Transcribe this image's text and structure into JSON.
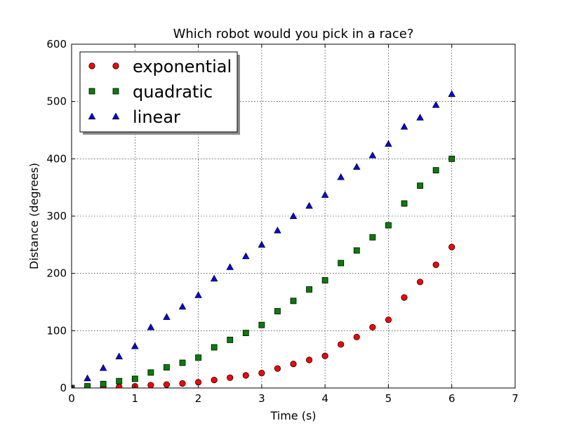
{
  "chart_data": {
    "type": "scatter",
    "title": "Which robot would you pick in a race?",
    "xlabel": "Time (s)",
    "ylabel": "Distance (degrees)",
    "xlim": [
      0,
      7
    ],
    "ylim": [
      0,
      600
    ],
    "xticks": [
      "0",
      "1",
      "2",
      "3",
      "4",
      "5",
      "6",
      "7"
    ],
    "yticks": [
      "0",
      "100",
      "200",
      "300",
      "400",
      "500",
      "600"
    ],
    "grid": true,
    "legend_position": "top-left",
    "series": [
      {
        "name": "exponential",
        "marker": "circle",
        "color": "#ff0000",
        "x": [
          0,
          0.25,
          0.5,
          0.75,
          1,
          1.25,
          1.5,
          1.75,
          2,
          2.25,
          2.5,
          2.75,
          3,
          3.25,
          3.5,
          3.75,
          4,
          4.25,
          4.5,
          4.75,
          5,
          5.25,
          5.5,
          5.75,
          6
        ],
        "y": [
          0,
          0,
          1,
          2,
          3,
          5,
          6,
          8,
          10,
          14,
          18,
          22,
          26,
          34,
          42,
          49,
          56,
          76,
          89,
          106,
          119,
          158,
          185,
          215,
          246
        ]
      },
      {
        "name": "quadratic",
        "marker": "square",
        "color": "#008000",
        "x": [
          0,
          0.25,
          0.5,
          0.75,
          1,
          1.25,
          1.5,
          1.75,
          2,
          2.25,
          2.5,
          2.75,
          3,
          3.25,
          3.5,
          3.75,
          4,
          4.25,
          4.5,
          4.75,
          5,
          5.25,
          5.5,
          5.75,
          6
        ],
        "y": [
          0,
          3,
          7,
          12,
          16,
          27,
          36,
          44,
          53,
          71,
          84,
          96,
          110,
          134,
          152,
          172,
          188,
          218,
          240,
          263,
          284,
          322,
          353,
          380,
          400
        ]
      },
      {
        "name": "linear",
        "marker": "triangle",
        "color": "#0000ff",
        "x": [
          0,
          0.25,
          0.5,
          0.75,
          1,
          1.25,
          1.5,
          1.75,
          2,
          2.25,
          2.5,
          2.75,
          3,
          3.25,
          3.5,
          3.75,
          4,
          4.25,
          4.5,
          4.75,
          5,
          5.25,
          5.5,
          5.75,
          6
        ],
        "y": [
          0,
          17,
          35,
          55,
          73,
          106,
          124,
          142,
          162,
          191,
          211,
          230,
          250,
          275,
          300,
          318,
          337,
          368,
          386,
          406,
          426,
          456,
          472,
          494,
          513
        ]
      }
    ]
  }
}
